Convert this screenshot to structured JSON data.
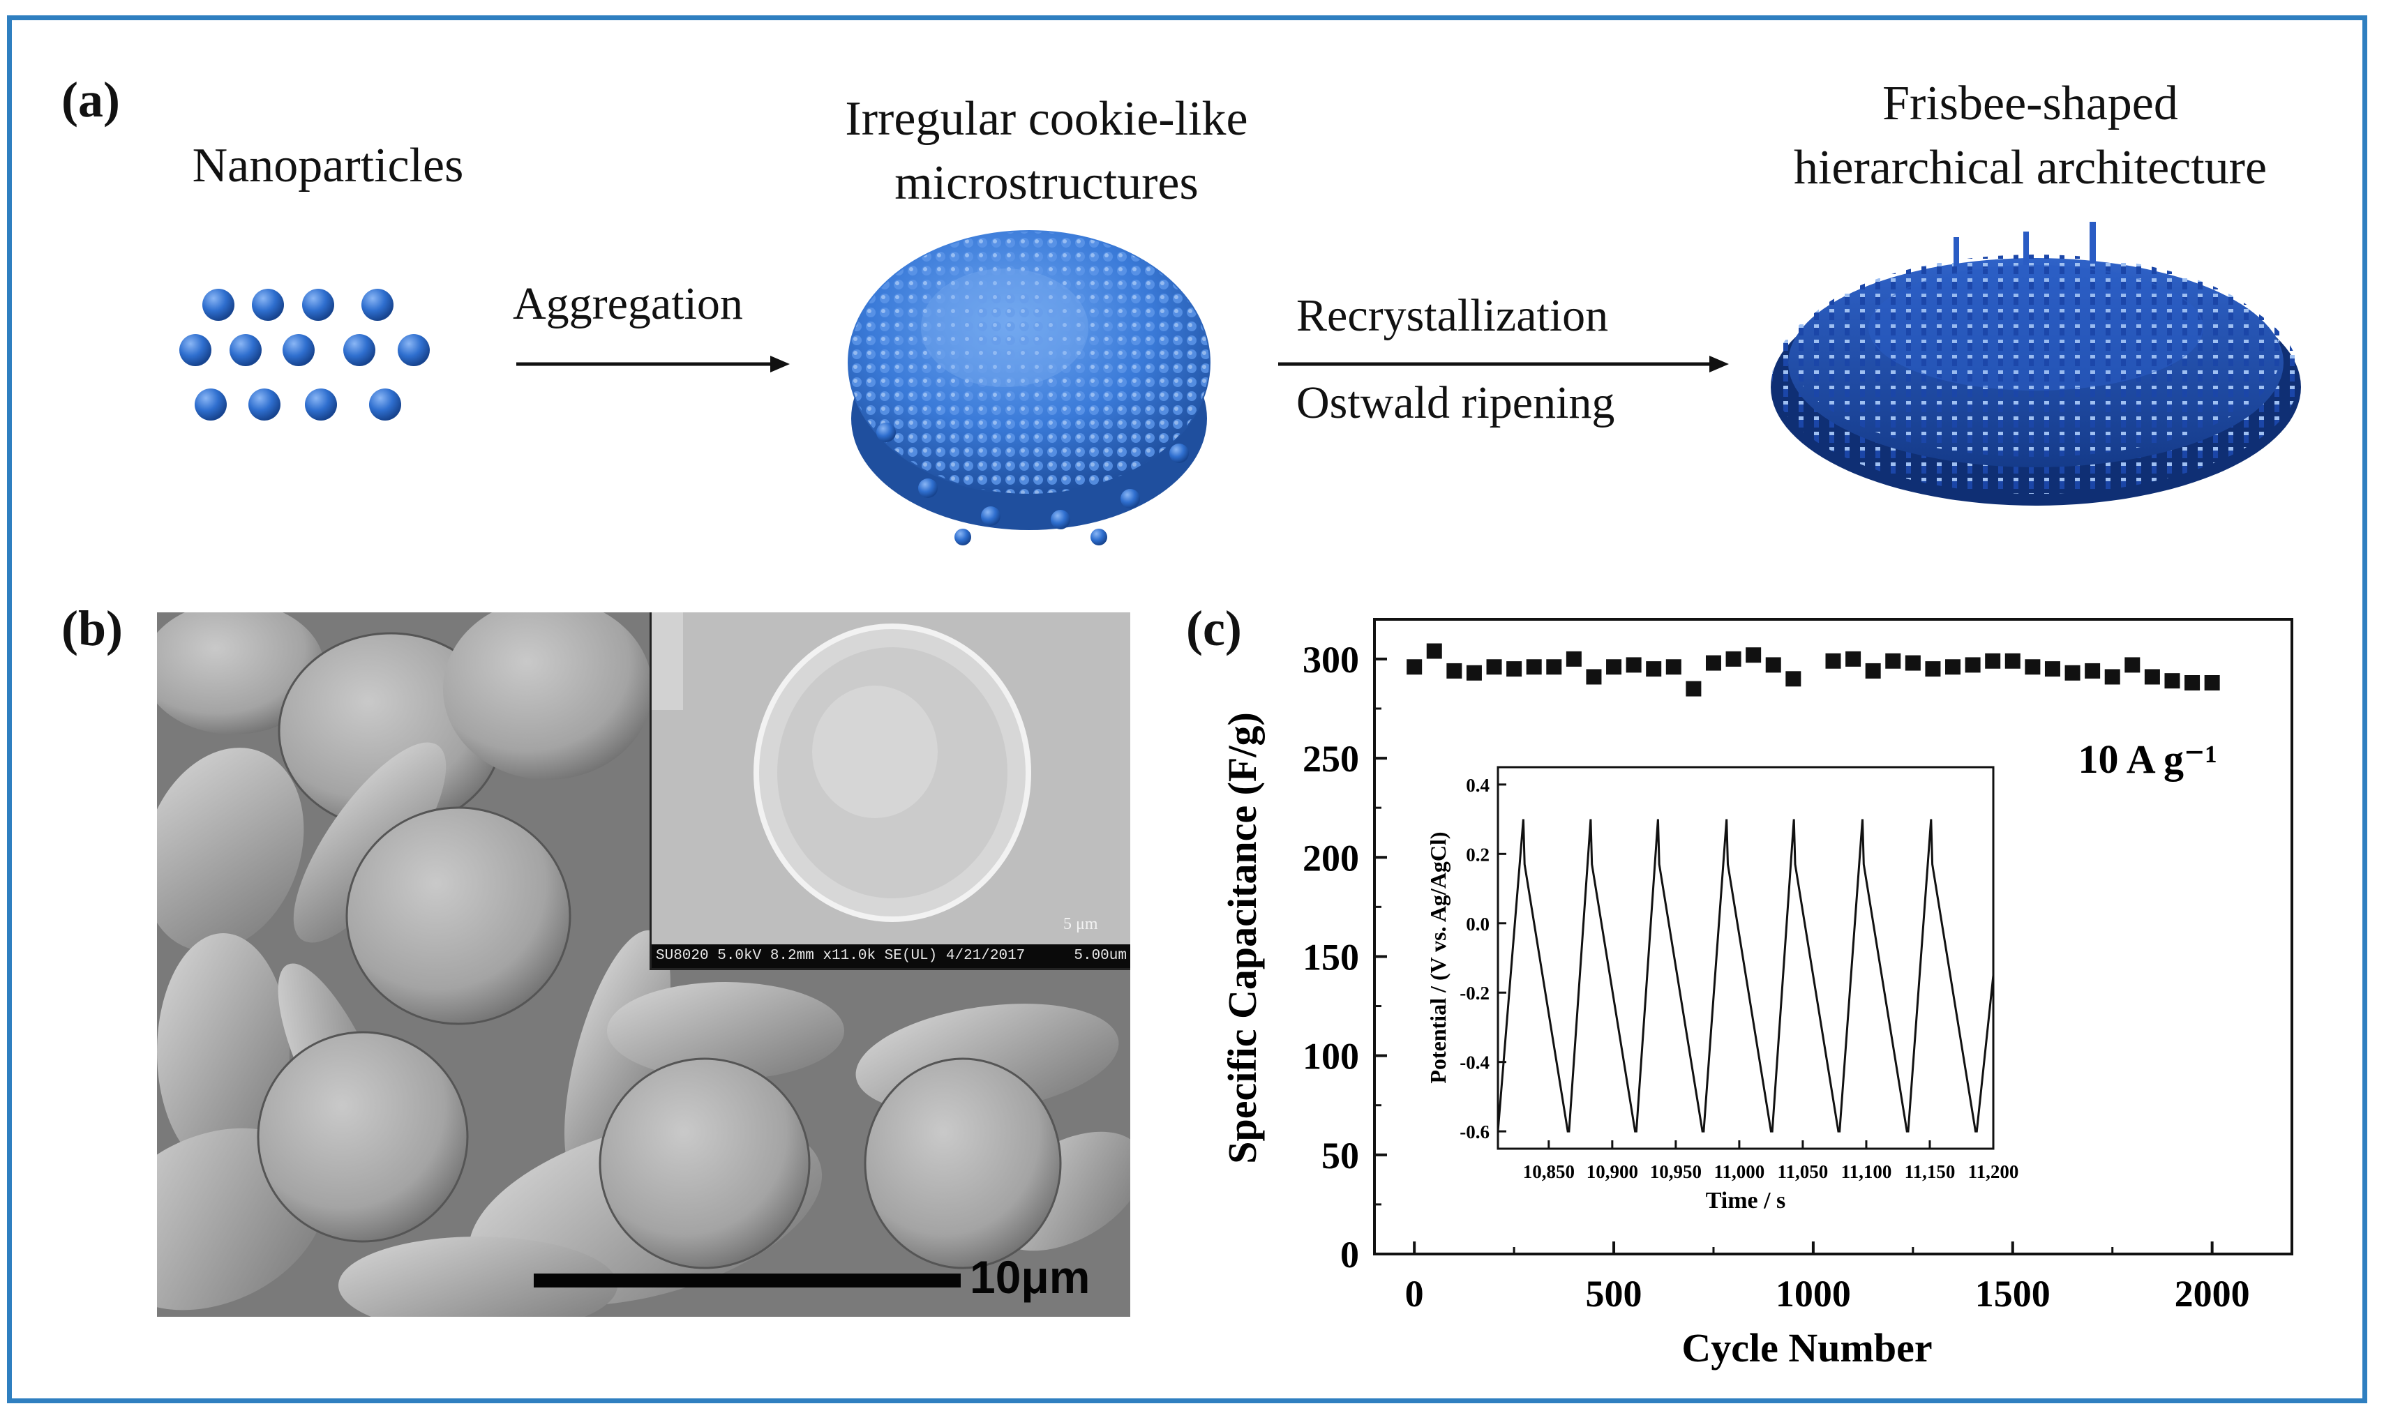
{
  "panel_a": {
    "label": "(a)",
    "stage1": "Nanoparticles",
    "stage2_line1": "Irregular cookie-like",
    "stage2_line2": "microstructures",
    "stage3_line1": "Frisbee-shaped",
    "stage3_line2": "hierarchical architecture",
    "step1": "Aggregation",
    "step2_line1": "Recrystallization",
    "step2_line2": "Ostwald ripening",
    "particle_color": "#2f6fcf"
  },
  "panel_b": {
    "label": "(b)",
    "scale_bar": "10μm",
    "inset_scale": "5 μm",
    "inset_info": "SU8020 5.0kV 8.2mm x11.0k SE(UL) 4/21/2017",
    "inset_info_scale": "5.00um"
  },
  "panel_c": {
    "label": "(c)"
  },
  "chart_data": [
    {
      "type": "scatter",
      "title": "",
      "annotation": "10 A g⁻¹",
      "xlabel": "Cycle Number",
      "ylabel": "Specific Capacitance (F/g)",
      "xlim": [
        -100,
        2200
      ],
      "ylim": [
        0,
        320
      ],
      "xticks": [
        0,
        500,
        1000,
        1500,
        2000
      ],
      "yticks": [
        0,
        50,
        100,
        150,
        200,
        250,
        300
      ],
      "x": [
        0,
        50,
        100,
        150,
        200,
        250,
        300,
        350,
        400,
        450,
        500,
        550,
        600,
        650,
        700,
        750,
        800,
        850,
        900,
        950,
        1050,
        1100,
        1150,
        1200,
        1250,
        1300,
        1350,
        1400,
        1450,
        1500,
        1550,
        1600,
        1650,
        1700,
        1750,
        1800,
        1850,
        1900,
        1950,
        2000
      ],
      "y": [
        296,
        304,
        294,
        293,
        296,
        295,
        296,
        296,
        300,
        291,
        296,
        297,
        295,
        296,
        285,
        298,
        300,
        302,
        297,
        290,
        299,
        300,
        294,
        299,
        298,
        295,
        296,
        297,
        299,
        299,
        296,
        295,
        293,
        294,
        291,
        297,
        291,
        289,
        288,
        288
      ],
      "marker": "square",
      "color": "#111111"
    },
    {
      "type": "line",
      "title": "",
      "xlabel": "Time / s",
      "ylabel": "Potential / (V vs. Ag/AgCl)",
      "xlim": [
        10810,
        11200
      ],
      "ylim": [
        -0.65,
        0.45
      ],
      "xticks": [
        10850,
        10900,
        10950,
        11000,
        11050,
        11100,
        11150,
        11200
      ],
      "xtick_labels": [
        "10,850",
        "10,900",
        "10,950",
        "11,000",
        "11,050",
        "11,100",
        "11,150",
        "11,200"
      ],
      "yticks": [
        -0.6,
        -0.4,
        -0.2,
        0.0,
        0.2,
        0.4
      ],
      "ytick_labels": [
        "-0.6",
        "-0.4",
        "-0.2",
        "0.0",
        "0.2",
        "0.4"
      ],
      "x": [
        10810,
        10830,
        10831,
        10865,
        10866,
        10883,
        10884,
        10918,
        10919,
        10936,
        10937,
        10971,
        10972,
        10990,
        10991,
        11025,
        11026,
        11043,
        11044,
        11078,
        11079,
        11097,
        11098,
        11132,
        11133,
        11151,
        11152,
        11186,
        11187,
        11200
      ],
      "y": [
        -0.6,
        0.3,
        0.17,
        -0.6,
        -0.6,
        0.3,
        0.17,
        -0.6,
        -0.6,
        0.3,
        0.17,
        -0.6,
        -0.6,
        0.3,
        0.17,
        -0.6,
        -0.6,
        0.3,
        0.17,
        -0.6,
        -0.6,
        0.3,
        0.17,
        -0.6,
        -0.6,
        0.3,
        0.17,
        -0.6,
        -0.6,
        -0.15
      ],
      "color": "#111111"
    }
  ]
}
